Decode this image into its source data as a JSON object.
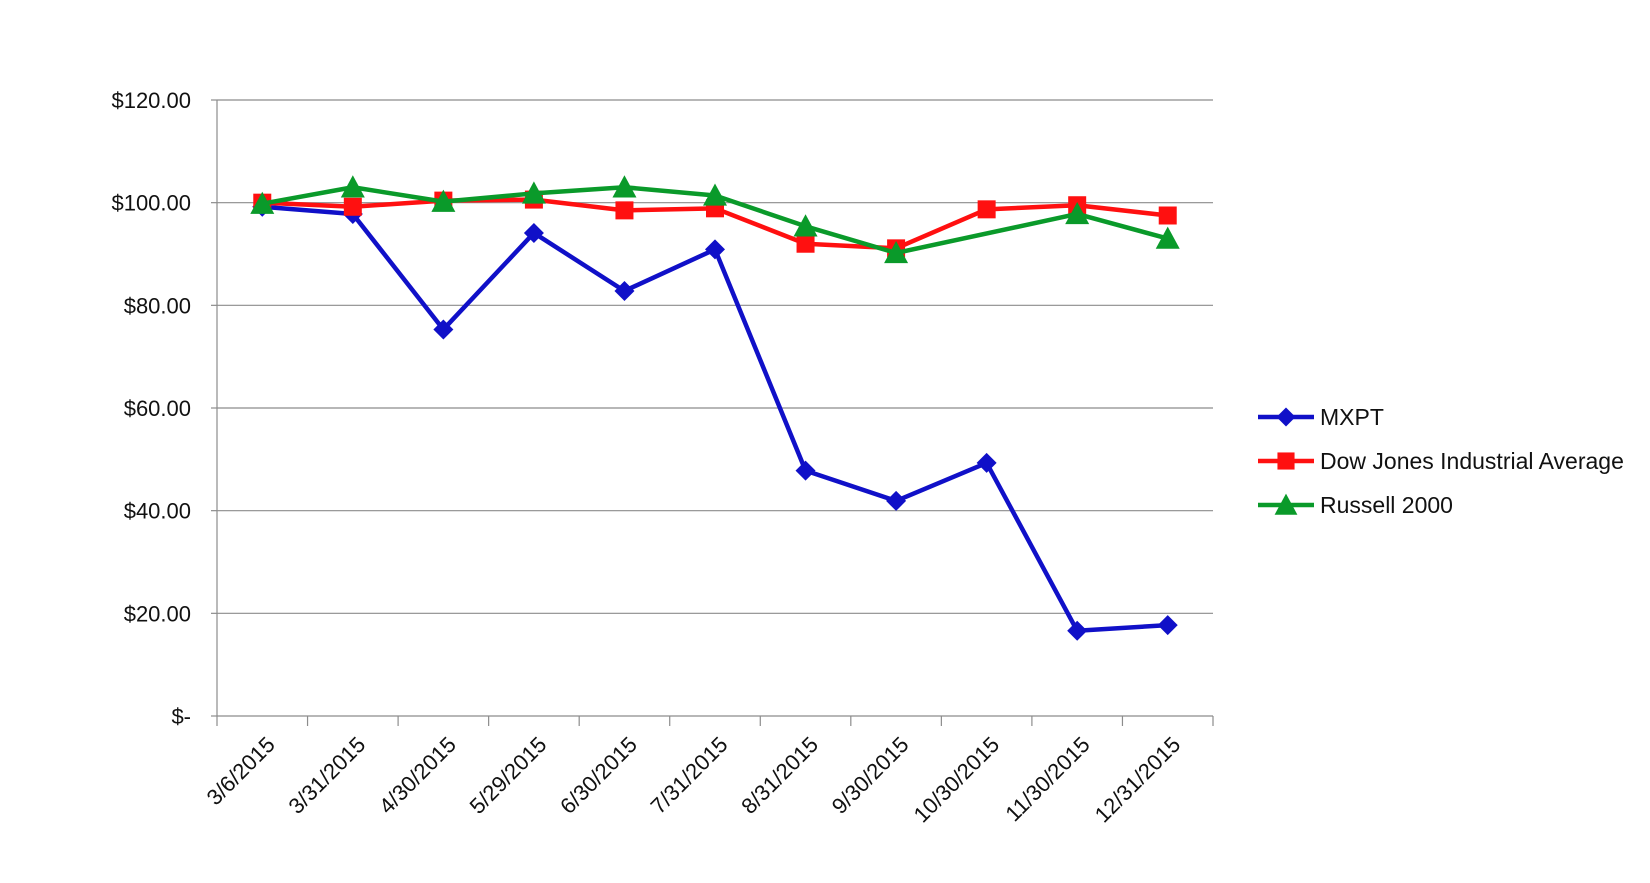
{
  "chart_data": {
    "type": "line",
    "title": "",
    "xlabel": "",
    "ylabel": "",
    "categories": [
      "3/6/2015",
      "3/31/2015",
      "4/30/2015",
      "5/29/2015",
      "6/30/2015",
      "7/31/2015",
      "8/31/2015",
      "9/30/2015",
      "10/30/2015",
      "11/30/2015",
      "12/31/2015"
    ],
    "y_tick_labels": [
      "$-",
      "$20.00",
      "$40.00",
      "$60.00",
      "$80.00",
      "$100.00",
      "$120.00"
    ],
    "y_ticks": [
      0,
      20,
      40,
      60,
      80,
      100,
      120
    ],
    "ylim": [
      0,
      120
    ],
    "grid": true,
    "legend_position": "right",
    "series": [
      {
        "name": "MXPT",
        "color": "#1010c8",
        "marker": "diamond",
        "values": [
          99.2,
          97.8,
          75.3,
          94.1,
          82.8,
          90.9,
          47.8,
          41.9,
          49.3,
          16.6,
          17.7
        ]
      },
      {
        "name": "Dow Jones Industrial Average",
        "color": "#ff1010",
        "marker": "square",
        "values": [
          100.0,
          99.2,
          100.4,
          100.6,
          98.5,
          98.9,
          92.0,
          91.1,
          98.7,
          99.5,
          97.5
        ]
      },
      {
        "name": "Russell 2000",
        "color": "#0a9a2a",
        "marker": "triangle",
        "values": [
          99.8,
          103.0,
          100.2,
          101.8,
          103.0,
          101.4,
          95.4,
          90.2,
          null,
          97.8,
          93.0
        ]
      }
    ]
  }
}
